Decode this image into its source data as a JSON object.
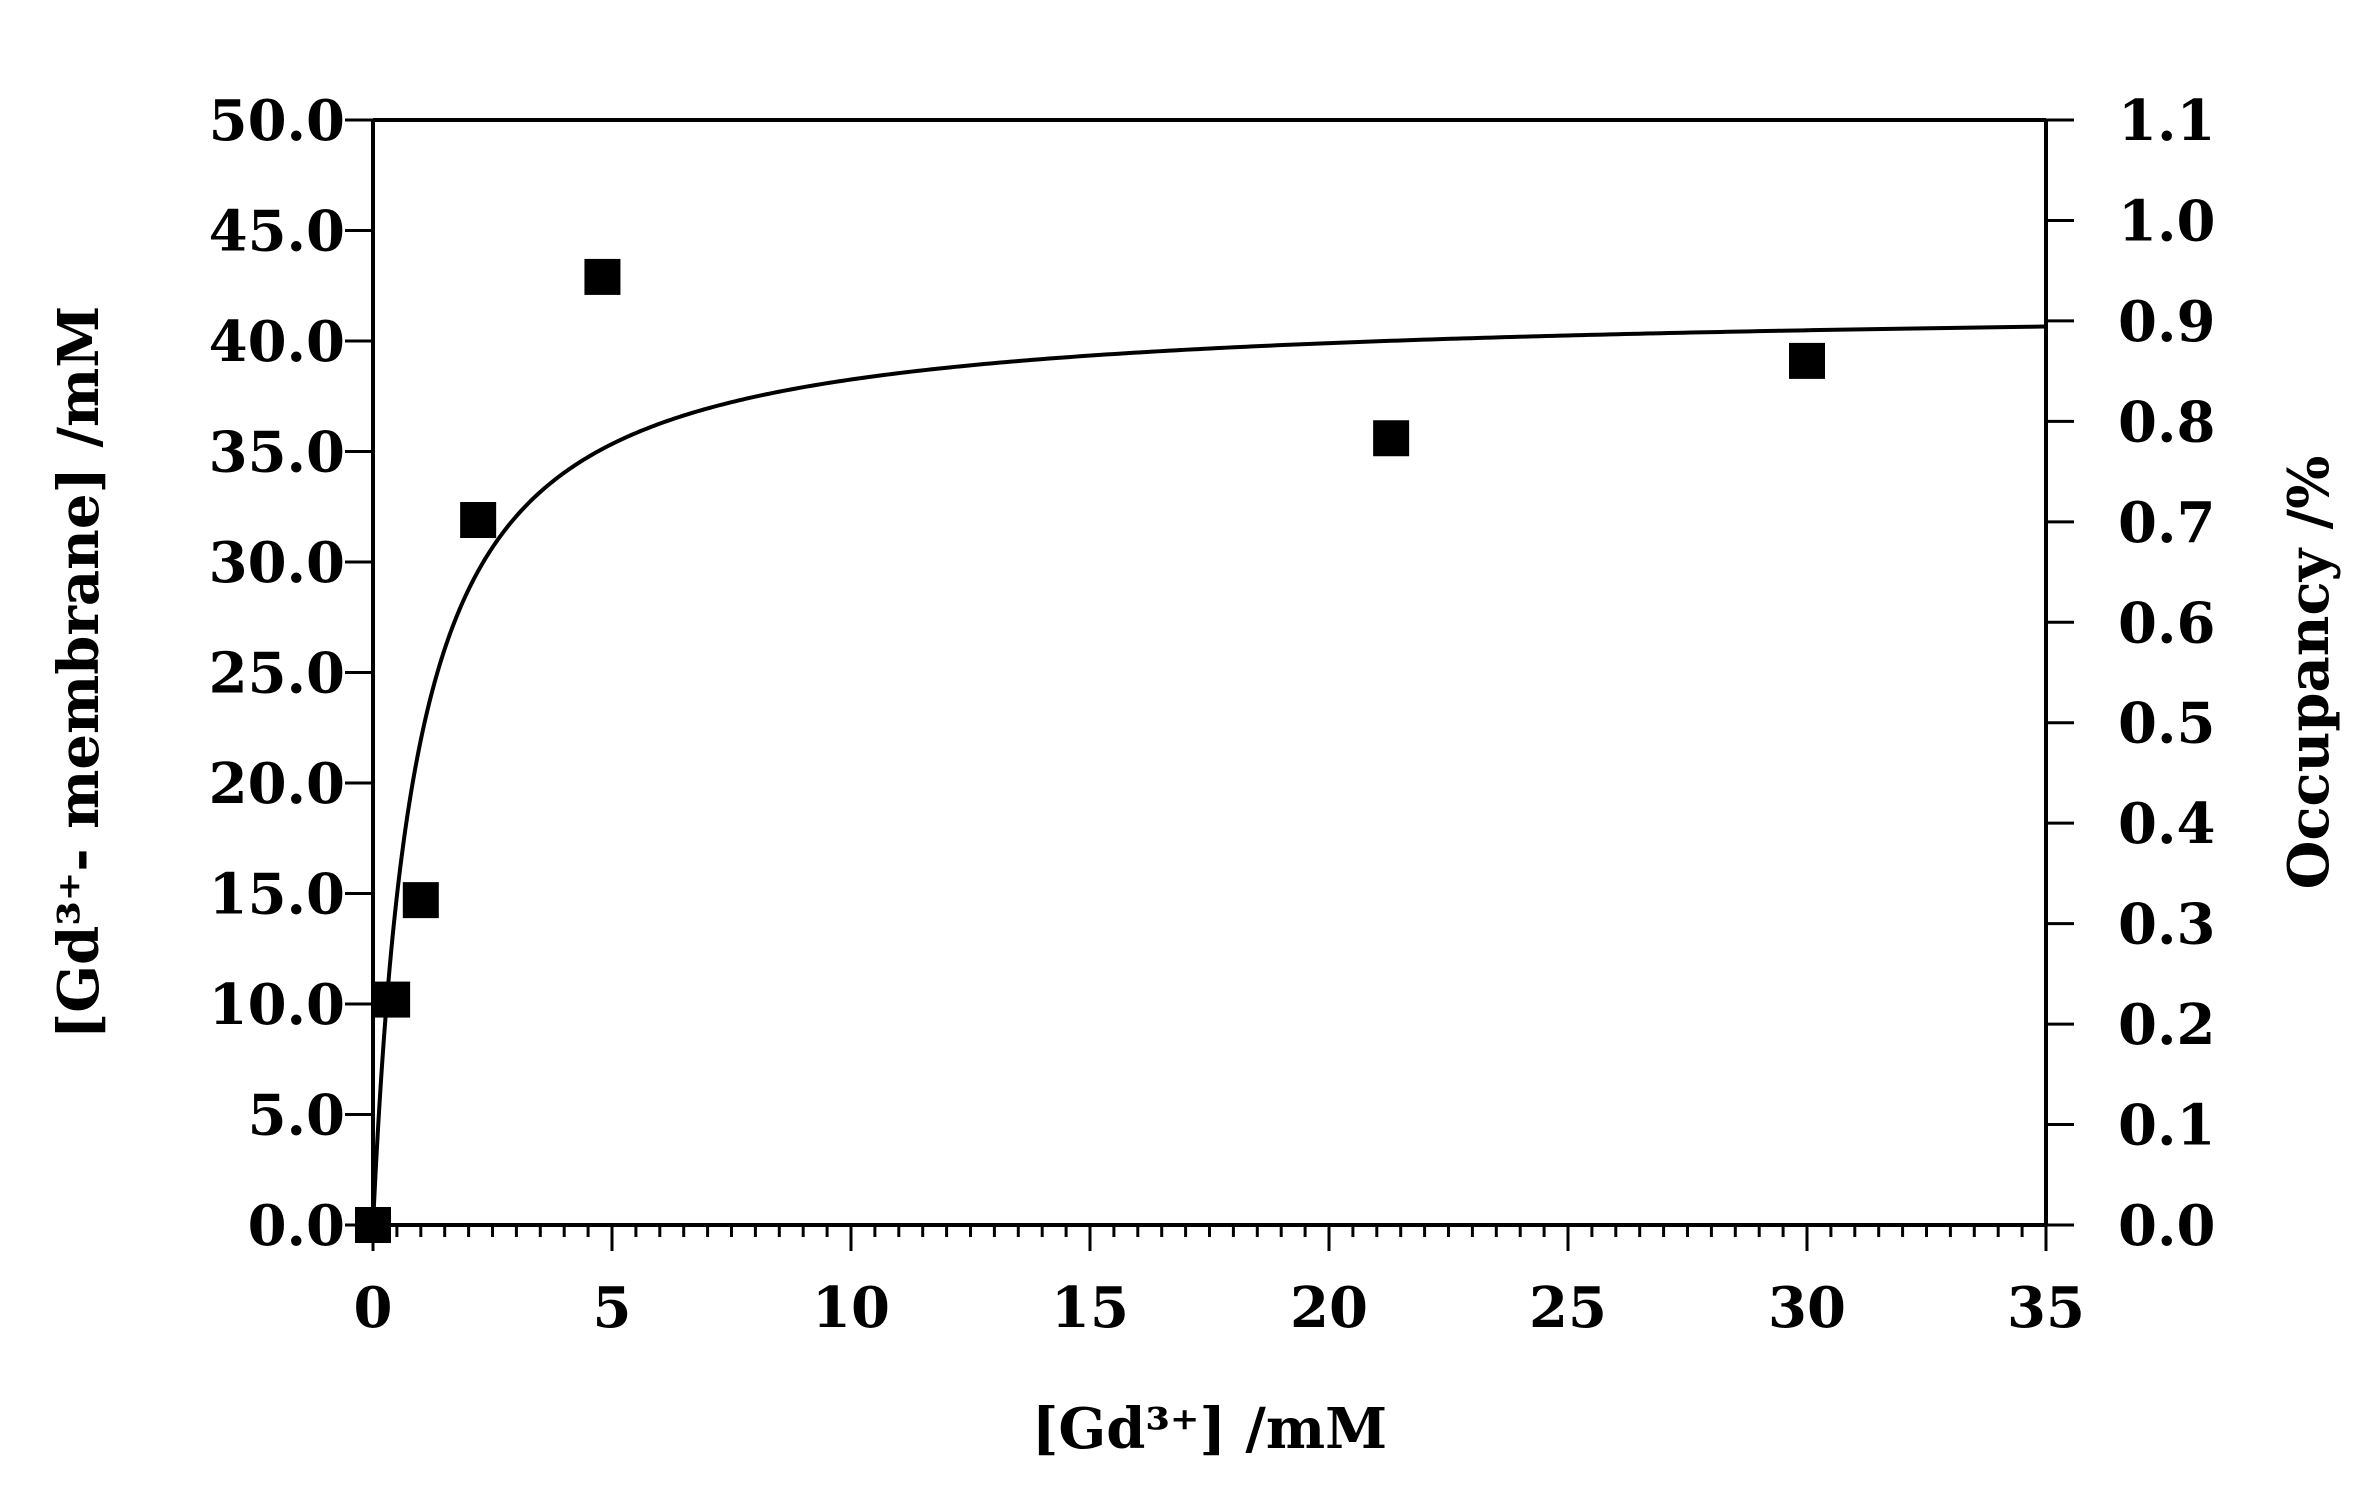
{
  "chart_data": {
    "type": "scatter",
    "xlabel": "[Gd³⁺] /mM",
    "ylabel": "[Gd³⁺- membrane] /mM",
    "y2label": "Occupancy /%",
    "xlim": [
      0,
      35
    ],
    "ylim": [
      0,
      50
    ],
    "y2lim": [
      0,
      1.1
    ],
    "x_ticks": [
      0,
      5,
      10,
      15,
      20,
      25,
      30,
      35
    ],
    "y_ticks": [
      "0.0",
      "5.0",
      "10.0",
      "15.0",
      "20.0",
      "25.0",
      "30.0",
      "35.0",
      "40.0",
      "45.0",
      "50.0"
    ],
    "y2_ticks": [
      "0.0",
      "0.1",
      "0.2",
      "0.3",
      "0.4",
      "0.5",
      "0.6",
      "0.7",
      "0.8",
      "0.9",
      "1.0",
      "1.1"
    ],
    "x_minor_step": 0.5,
    "grid": false,
    "series": [
      {
        "marker": "square",
        "color": "#000000",
        "x": [
          0.0,
          0.4,
          1.0,
          2.2,
          4.8,
          21.3,
          30.0
        ],
        "y": [
          0.0,
          10.2,
          14.7,
          31.9,
          42.9,
          35.6,
          39.1
        ]
      }
    ],
    "fit_curve": {
      "model": "langmuir",
      "color": "#000000",
      "bmax": 41.7,
      "kd": 0.9
    }
  }
}
